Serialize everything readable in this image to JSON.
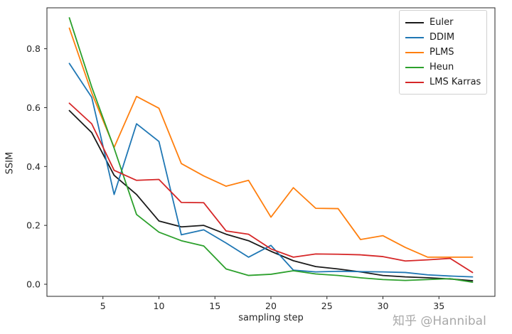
{
  "figure": {
    "background": "#ffffff",
    "watermark": "知乎 @Hannibal"
  },
  "chart_data": {
    "type": "line",
    "title": "",
    "xlabel": "sampling step",
    "ylabel": "SSIM",
    "grid": false,
    "legend_position": "upper right",
    "xlim": [
      0,
      40
    ],
    "ylim": [
      -0.041,
      0.939
    ],
    "x_ticks": [
      5,
      10,
      15,
      20,
      25,
      30,
      35
    ],
    "y_ticks": [
      0.0,
      0.2,
      0.4,
      0.6,
      0.8
    ],
    "x": [
      2,
      4,
      6,
      8,
      10,
      12,
      14,
      16,
      18,
      20,
      22,
      24,
      26,
      28,
      30,
      32,
      34,
      36,
      38
    ],
    "series": [
      {
        "name": "Euler",
        "color": "#1a1a1a",
        "values": [
          0.59,
          0.515,
          0.37,
          0.305,
          0.215,
          0.195,
          0.2,
          0.17,
          0.148,
          0.112,
          0.08,
          0.06,
          0.052,
          0.042,
          0.03,
          0.025,
          0.022,
          0.018,
          0.012
        ]
      },
      {
        "name": "DDIM",
        "color": "#1f77b4",
        "values": [
          0.75,
          0.635,
          0.305,
          0.545,
          0.485,
          0.168,
          0.185,
          0.14,
          0.092,
          0.132,
          0.048,
          0.042,
          0.044,
          0.043,
          0.042,
          0.04,
          0.032,
          0.028,
          0.025
        ]
      },
      {
        "name": "PLMS",
        "color": "#ff7f0e",
        "values": [
          0.87,
          0.65,
          0.465,
          0.638,
          0.598,
          0.41,
          0.368,
          0.333,
          0.353,
          0.228,
          0.328,
          0.258,
          0.257,
          0.152,
          0.165,
          0.125,
          0.092,
          0.092,
          0.092
        ]
      },
      {
        "name": "Heun",
        "color": "#2ca02c",
        "values": [
          0.905,
          0.67,
          0.462,
          0.237,
          0.177,
          0.148,
          0.13,
          0.052,
          0.03,
          0.034,
          0.046,
          0.035,
          0.03,
          0.022,
          0.016,
          0.013,
          0.016,
          0.019,
          0.007
        ]
      },
      {
        "name": "LMS Karras",
        "color": "#d62728",
        "values": [
          0.615,
          0.545,
          0.387,
          0.353,
          0.356,
          0.278,
          0.277,
          0.181,
          0.17,
          0.12,
          0.092,
          0.103,
          0.102,
          0.1,
          0.094,
          0.079,
          0.083,
          0.088,
          0.04
        ]
      }
    ]
  }
}
